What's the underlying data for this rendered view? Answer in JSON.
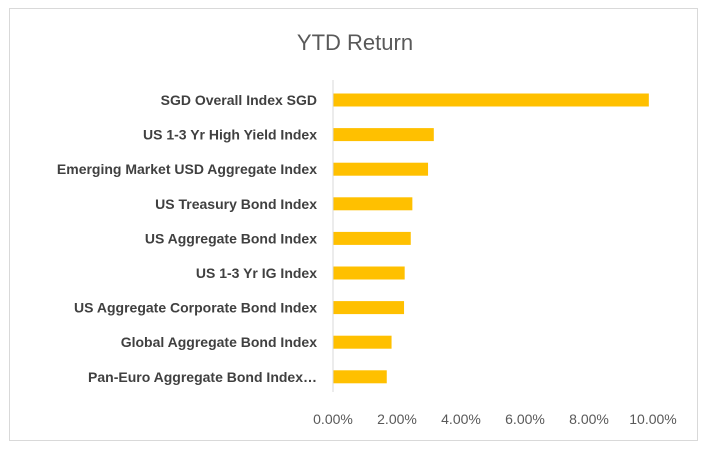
{
  "chart_data": {
    "type": "bar",
    "orientation": "horizontal",
    "title": "YTD Return",
    "xlabel": "",
    "ylabel": "",
    "categories": [
      "SGD Overall Index SGD",
      "US 1-3 Yr High Yield Index",
      "Emerging Market USD Aggregate Index",
      "US Treasury Bond Index",
      "US Aggregate Bond Index",
      "US 1-3 Yr IG Index",
      "US Aggregate Corporate Bond Index",
      "Global Aggregate Bond Index",
      "Pan-Euro Aggregate Bond Index…"
    ],
    "values": [
      0.0987,
      0.0315,
      0.0297,
      0.0248,
      0.0243,
      0.0224,
      0.0222,
      0.0183,
      0.0168
    ],
    "xlim": [
      0,
      0.1
    ],
    "ticks": [
      0,
      0.02,
      0.04,
      0.06,
      0.08,
      0.1
    ],
    "tick_labels": [
      "0.00%",
      "2.00%",
      "4.00%",
      "6.00%",
      "8.00%",
      "10.00%"
    ],
    "bar_color": "#ffc000",
    "grid": false,
    "legend": "none"
  }
}
